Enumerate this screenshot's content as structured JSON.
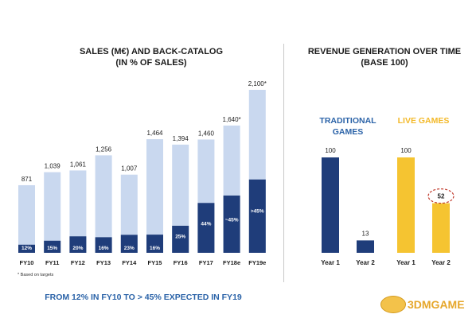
{
  "chart_data": [
    {
      "type": "bar",
      "title_line1": "SALES (M€) AND BACK-CATALOG",
      "title_line2": "(IN % OF SALES)",
      "categories": [
        "FY10",
        "FY11",
        "FY12",
        "FY13",
        "FY14",
        "FY15",
        "FY16",
        "FY17",
        "FY18e",
        "FY19e"
      ],
      "total_labels": [
        "871",
        "1,039",
        "1,061",
        "1,256",
        "1,007",
        "1,464",
        "1,394",
        "1,460",
        "1,640*",
        "2,100*"
      ],
      "series": [
        {
          "values": [
            871,
            1039,
            1061,
            1256,
            1007,
            1464,
            1394,
            1460,
            1640,
            2100
          ],
          "color": "#c9d8ef"
        },
        {
          "values": [
            104.5,
            155.9,
            212.2,
            201.0,
            231.6,
            234.2,
            348.5,
            642.4,
            738,
            945
          ],
          "color": "#1f3d7a"
        }
      ],
      "pct_labels": [
        "12%",
        "15%",
        "20%",
        "16%",
        "23%",
        "16%",
        "25%",
        "44%",
        "~45%",
        ">45%"
      ],
      "ylim": [
        0,
        2100
      ],
      "footnote": "* Based on targets",
      "conclusion": "FROM 12% IN FY10 TO > 45% EXPECTED IN FY19"
    },
    {
      "type": "bar",
      "title_line1": "REVENUE GENERATION OVER TIME",
      "title_line2": "(BASE 100)",
      "groups": [
        {
          "name_line1": "TRADITIONAL",
          "name_line2": "GAMES",
          "color": "#1f3d7a",
          "categories": [
            "Year 1",
            "Year 2"
          ],
          "values": [
            100,
            13
          ]
        },
        {
          "name_line1": "LIVE GAMES",
          "name_line2": "",
          "color": "#f5c431",
          "categories": [
            "Year 1",
            "Year 2"
          ],
          "values": [
            100,
            52
          ]
        }
      ],
      "ylim": [
        0,
        100
      ]
    }
  ],
  "watermark": {
    "text": "3DMGAME"
  }
}
